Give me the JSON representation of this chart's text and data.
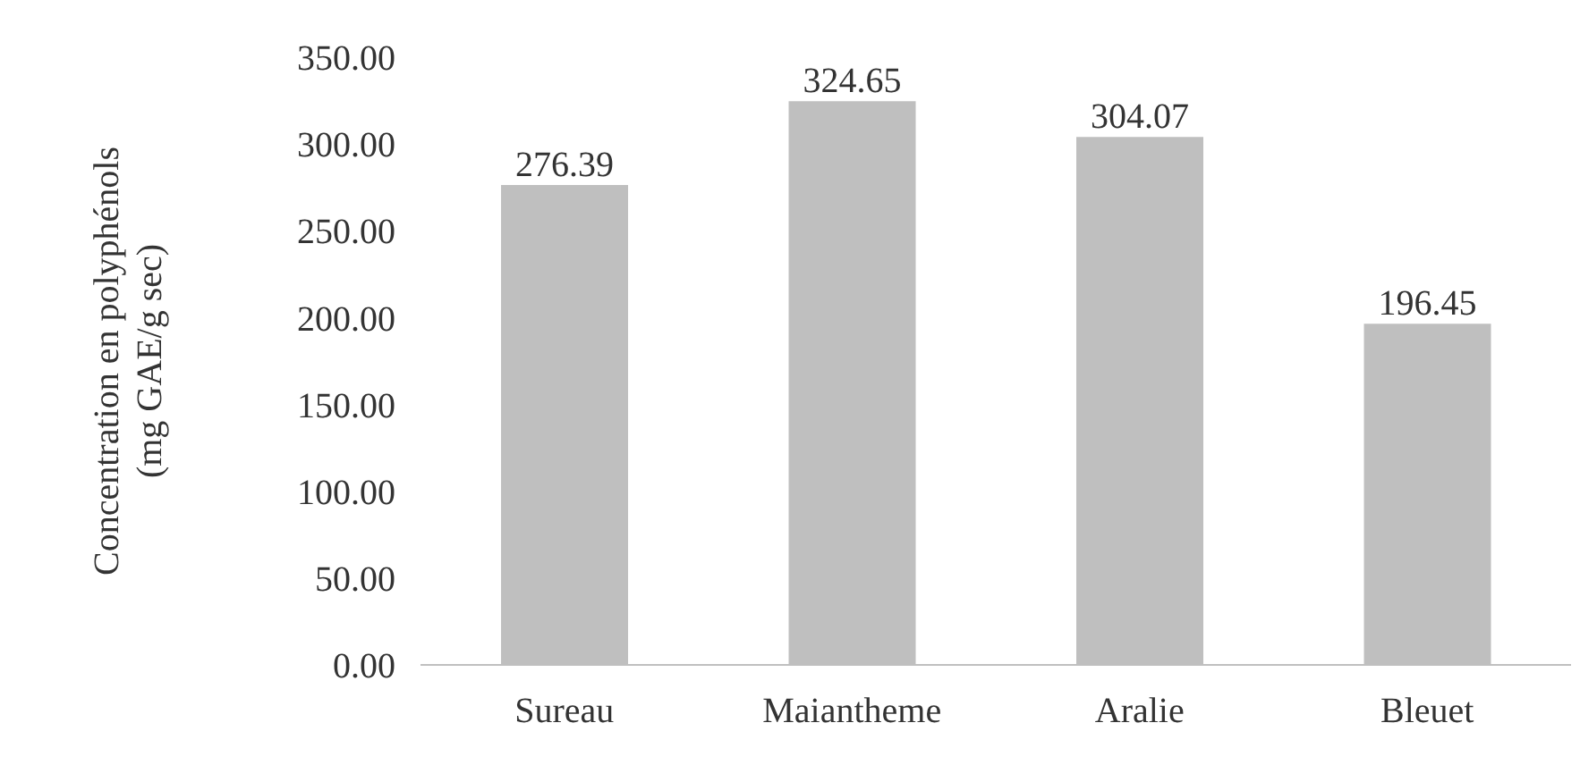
{
  "chart_data": {
    "type": "bar",
    "ylabel": "Concentration en polyphénols (mg GAE/g sec)",
    "categories": [
      "Sureau",
      "Maiantheme",
      "Aralie",
      "Bleuet"
    ],
    "values": [
      276.39,
      324.65,
      304.07,
      196.45
    ],
    "color": "#bfbfbf",
    "data_labels": true,
    "grid": false,
    "legend": false,
    "ylim": [
      0,
      350
    ],
    "yticks": [
      {
        "value": 0,
        "label": "0.00"
      },
      {
        "value": 50,
        "label": "50.00"
      },
      {
        "value": 100,
        "label": "100.00"
      },
      {
        "value": 150,
        "label": "150.00"
      },
      {
        "value": 200,
        "label": "200.00"
      },
      {
        "value": 250,
        "label": "250.00"
      },
      {
        "value": 300,
        "label": "300.00"
      },
      {
        "value": 350,
        "label": "350.00"
      }
    ]
  }
}
